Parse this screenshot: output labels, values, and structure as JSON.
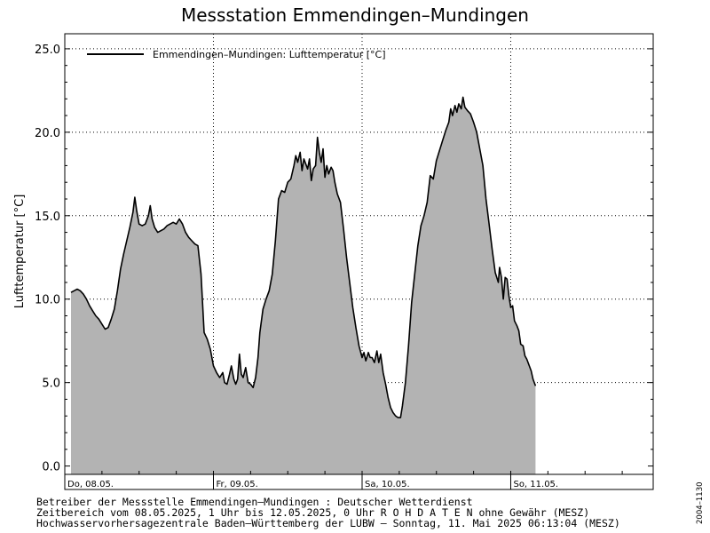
{
  "chart_data": {
    "type": "area",
    "title": "Messstation Emmendingen–Mundingen",
    "ylabel": "Lufttemperatur [°C]",
    "ylim": [
      -0.5,
      25.9
    ],
    "yticks": [
      0,
      5,
      10,
      15,
      20,
      25
    ],
    "ytick_labels": [
      "0.0",
      "5.0",
      "10.0",
      "15.0",
      "20.0",
      "25.0"
    ],
    "xlim": [
      0,
      95
    ],
    "x_unit": "hours since 08.05.2025 00:00",
    "day_ticks": [
      {
        "x": 0,
        "label": "Do, 08.05."
      },
      {
        "x": 24,
        "label": "Fr, 09.05."
      },
      {
        "x": 48,
        "label": "Sa, 10.05."
      },
      {
        "x": 72,
        "label": "So, 11.05."
      }
    ],
    "grid": true,
    "legend": {
      "position": "top-left",
      "entries": [
        "Emmendingen–Mundingen: Lufttemperatur  [°C]"
      ]
    },
    "series": [
      {
        "name": "Emmendingen–Mundingen: Lufttemperatur  [°C]",
        "color": "#000000",
        "fill": "#b3b3b3",
        "points": [
          [
            1,
            10.4
          ],
          [
            1.5,
            10.5
          ],
          [
            2,
            10.6
          ],
          [
            2.5,
            10.5
          ],
          [
            3,
            10.3
          ],
          [
            3.5,
            10.0
          ],
          [
            4,
            9.6
          ],
          [
            4.5,
            9.3
          ],
          [
            5,
            9.0
          ],
          [
            5.5,
            8.8
          ],
          [
            6,
            8.5
          ],
          [
            6.5,
            8.2
          ],
          [
            7,
            8.3
          ],
          [
            7.5,
            8.8
          ],
          [
            8,
            9.4
          ],
          [
            8.5,
            10.5
          ],
          [
            9,
            11.8
          ],
          [
            9.5,
            12.7
          ],
          [
            10,
            13.5
          ],
          [
            10.5,
            14.3
          ],
          [
            11,
            15.2
          ],
          [
            11.3,
            16.1
          ],
          [
            11.6,
            15.3
          ],
          [
            12,
            14.5
          ],
          [
            12.5,
            14.4
          ],
          [
            13,
            14.5
          ],
          [
            13.5,
            15.0
          ],
          [
            13.8,
            15.6
          ],
          [
            14.1,
            14.8
          ],
          [
            14.5,
            14.3
          ],
          [
            15,
            14.0
          ],
          [
            15.5,
            14.1
          ],
          [
            16,
            14.2
          ],
          [
            16.5,
            14.4
          ],
          [
            17,
            14.5
          ],
          [
            17.5,
            14.6
          ],
          [
            18,
            14.5
          ],
          [
            18.5,
            14.8
          ],
          [
            19,
            14.5
          ],
          [
            19.5,
            14.0
          ],
          [
            20,
            13.7
          ],
          [
            20.5,
            13.5
          ],
          [
            21,
            13.3
          ],
          [
            21.5,
            13.2
          ],
          [
            22,
            11.5
          ],
          [
            22.5,
            8.0
          ],
          [
            23,
            7.6
          ],
          [
            23.5,
            7.0
          ],
          [
            24,
            6.0
          ],
          [
            24.5,
            5.6
          ],
          [
            25,
            5.3
          ],
          [
            25.5,
            5.6
          ],
          [
            25.8,
            5.0
          ],
          [
            26.2,
            4.9
          ],
          [
            26.6,
            5.5
          ],
          [
            26.9,
            6.0
          ],
          [
            27.3,
            5.2
          ],
          [
            27.6,
            4.9
          ],
          [
            27.9,
            5.2
          ],
          [
            28.2,
            6.7
          ],
          [
            28.5,
            5.5
          ],
          [
            28.8,
            5.3
          ],
          [
            29.2,
            5.9
          ],
          [
            29.6,
            5.0
          ],
          [
            30.0,
            4.9
          ],
          [
            30.4,
            4.7
          ],
          [
            30.8,
            5.3
          ],
          [
            31.2,
            6.5
          ],
          [
            31.5,
            8.0
          ],
          [
            32,
            9.4
          ],
          [
            32.5,
            10.0
          ],
          [
            33,
            10.5
          ],
          [
            33.5,
            11.5
          ],
          [
            34,
            13.5
          ],
          [
            34.5,
            16.0
          ],
          [
            35,
            16.5
          ],
          [
            35.5,
            16.4
          ],
          [
            36,
            17.0
          ],
          [
            36.5,
            17.2
          ],
          [
            37,
            18.0
          ],
          [
            37.3,
            18.6
          ],
          [
            37.6,
            18.2
          ],
          [
            38,
            18.8
          ],
          [
            38.3,
            17.7
          ],
          [
            38.6,
            18.4
          ],
          [
            38.9,
            18.1
          ],
          [
            39.2,
            17.8
          ],
          [
            39.5,
            18.4
          ],
          [
            39.8,
            17.1
          ],
          [
            40.1,
            17.8
          ],
          [
            40.5,
            18.0
          ],
          [
            40.8,
            19.7
          ],
          [
            41.1,
            18.8
          ],
          [
            41.4,
            18.2
          ],
          [
            41.7,
            19.0
          ],
          [
            42.0,
            17.3
          ],
          [
            42.3,
            18.0
          ],
          [
            42.6,
            17.5
          ],
          [
            43.0,
            17.9
          ],
          [
            43.3,
            17.7
          ],
          [
            43.6,
            17.0
          ],
          [
            44,
            16.3
          ],
          [
            44.5,
            15.8
          ],
          [
            45,
            14.2
          ],
          [
            45.5,
            12.5
          ],
          [
            46,
            11.0
          ],
          [
            46.5,
            9.5
          ],
          [
            47,
            8.3
          ],
          [
            47.5,
            7.2
          ],
          [
            48,
            6.5
          ],
          [
            48.3,
            6.8
          ],
          [
            48.6,
            6.3
          ],
          [
            49,
            6.8
          ],
          [
            49.3,
            6.5
          ],
          [
            49.6,
            6.5
          ],
          [
            50,
            6.2
          ],
          [
            50.4,
            6.9
          ],
          [
            50.7,
            6.2
          ],
          [
            51,
            6.7
          ],
          [
            51.4,
            5.6
          ],
          [
            51.8,
            4.9
          ],
          [
            52.2,
            4.1
          ],
          [
            52.6,
            3.5
          ],
          [
            53,
            3.2
          ],
          [
            53.4,
            3.0
          ],
          [
            53.8,
            2.9
          ],
          [
            54.2,
            2.9
          ],
          [
            54.5,
            3.6
          ],
          [
            55,
            5.0
          ],
          [
            55.5,
            7.2
          ],
          [
            56,
            9.8
          ],
          [
            56.5,
            11.5
          ],
          [
            57,
            13.2
          ],
          [
            57.5,
            14.4
          ],
          [
            58,
            15.0
          ],
          [
            58.5,
            15.8
          ],
          [
            59,
            17.4
          ],
          [
            59.5,
            17.2
          ],
          [
            60,
            18.3
          ],
          [
            60.5,
            18.9
          ],
          [
            61,
            19.5
          ],
          [
            61.5,
            20.1
          ],
          [
            62,
            20.6
          ],
          [
            62.3,
            21.4
          ],
          [
            62.6,
            21.0
          ],
          [
            63,
            21.6
          ],
          [
            63.3,
            21.2
          ],
          [
            63.6,
            21.7
          ],
          [
            64,
            21.4
          ],
          [
            64.3,
            22.1
          ],
          [
            64.6,
            21.5
          ],
          [
            65,
            21.3
          ],
          [
            65.5,
            21.1
          ],
          [
            66,
            20.6
          ],
          [
            66.5,
            20.0
          ],
          [
            67,
            19.0
          ],
          [
            67.5,
            18.0
          ],
          [
            68,
            16.0
          ],
          [
            68.5,
            14.5
          ],
          [
            69,
            13.0
          ],
          [
            69.5,
            11.6
          ],
          [
            70,
            11.0
          ],
          [
            70.2,
            11.9
          ],
          [
            70.5,
            11.3
          ],
          [
            70.8,
            10.0
          ],
          [
            71.1,
            11.3
          ],
          [
            71.4,
            11.2
          ],
          [
            71.7,
            10.2
          ],
          [
            72,
            9.5
          ],
          [
            72.3,
            9.6
          ],
          [
            72.6,
            8.7
          ],
          [
            73,
            8.4
          ],
          [
            73.3,
            8.1
          ],
          [
            73.6,
            7.3
          ],
          [
            74,
            7.2
          ],
          [
            74.3,
            6.6
          ],
          [
            74.6,
            6.4
          ],
          [
            75,
            6.0
          ],
          [
            75.3,
            5.7
          ],
          [
            75.6,
            5.2
          ],
          [
            76,
            4.8
          ]
        ]
      }
    ]
  },
  "footer": {
    "line1": "Betreiber der Messstelle Emmendingen–Mundingen : Deutscher Wetterdienst",
    "line2": "Zeitbereich vom 08.05.2025, 1 Uhr bis 12.05.2025, 0 Uhr   R O H D A T E N ohne Gewähr (MESZ)",
    "line3": "Hochwasservorhersagezentrale Baden–Württemberg der LUBW – Sonntag, 11. Mai 2025 06:13:04 (MESZ)",
    "code": "2004–1130"
  }
}
